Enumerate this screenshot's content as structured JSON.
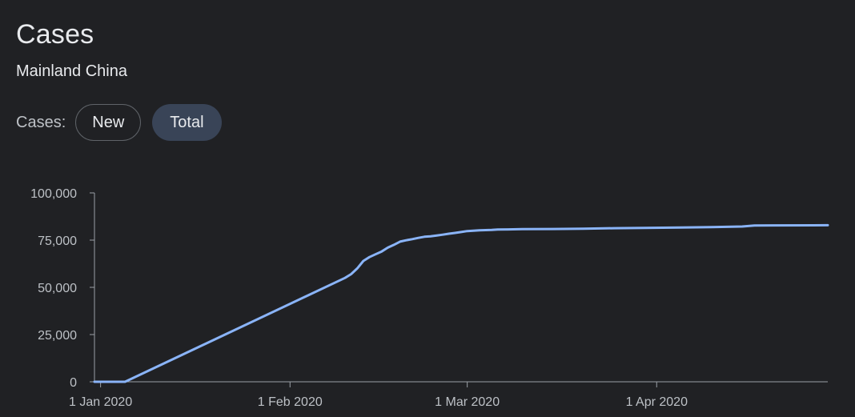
{
  "header": {
    "title": "Cases",
    "subtitle": "Mainland China"
  },
  "toggle": {
    "label": "Cases:",
    "options": [
      "New",
      "Total"
    ],
    "selected": "Total"
  },
  "colors": {
    "background": "#202124",
    "line": "#8ab4f8",
    "axis": "#9aa0a6",
    "selected_chip": "#394457"
  },
  "chart_data": {
    "type": "line",
    "title": "",
    "xlabel": "",
    "ylabel": "",
    "grid": false,
    "y_ticks": [
      0,
      25000,
      50000,
      75000,
      100000
    ],
    "y_tick_labels": [
      "0",
      "25,000",
      "50,000",
      "75,000",
      "100,000"
    ],
    "x_ticks": [
      "2020-01-01",
      "2020-02-01",
      "2020-03-01",
      "2020-04-01"
    ],
    "x_tick_labels": [
      "1 Jan 2020",
      "1 Feb 2020",
      "1 Mar 2020",
      "1 Apr 2020"
    ],
    "ylim": [
      0,
      100000
    ],
    "xlim": [
      "2019-12-31",
      "2020-04-29"
    ],
    "series": [
      {
        "values": [
          [
            "2019-12-31",
            0
          ],
          [
            "2020-01-05",
            0
          ],
          [
            "2020-02-10",
            55000
          ],
          [
            "2020-02-11",
            57000
          ],
          [
            "2020-02-12",
            60000
          ],
          [
            "2020-02-13",
            64000
          ],
          [
            "2020-02-14",
            66000
          ],
          [
            "2020-02-15",
            67500
          ],
          [
            "2020-02-16",
            69000
          ],
          [
            "2020-02-17",
            71000
          ],
          [
            "2020-02-18",
            72500
          ],
          [
            "2020-02-19",
            74200
          ],
          [
            "2020-02-20",
            74900
          ],
          [
            "2020-02-21",
            75500
          ],
          [
            "2020-02-22",
            76200
          ],
          [
            "2020-02-23",
            76800
          ],
          [
            "2020-02-24",
            77000
          ],
          [
            "2020-02-25",
            77400
          ],
          [
            "2020-02-26",
            77900
          ],
          [
            "2020-02-27",
            78400
          ],
          [
            "2020-02-28",
            78800
          ],
          [
            "2020-02-29",
            79300
          ],
          [
            "2020-03-01",
            79800
          ],
          [
            "2020-03-02",
            80000
          ],
          [
            "2020-03-03",
            80200
          ],
          [
            "2020-03-05",
            80400
          ],
          [
            "2020-03-06",
            80600
          ],
          [
            "2020-03-10",
            80800
          ],
          [
            "2020-03-15",
            80900
          ],
          [
            "2020-03-20",
            81000
          ],
          [
            "2020-03-25",
            81300
          ],
          [
            "2020-03-30",
            81500
          ],
          [
            "2020-04-05",
            81700
          ],
          [
            "2020-04-10",
            81900
          ],
          [
            "2020-04-15",
            82200
          ],
          [
            "2020-04-17",
            82700
          ],
          [
            "2020-04-20",
            82800
          ],
          [
            "2020-04-29",
            82900
          ]
        ]
      }
    ]
  }
}
